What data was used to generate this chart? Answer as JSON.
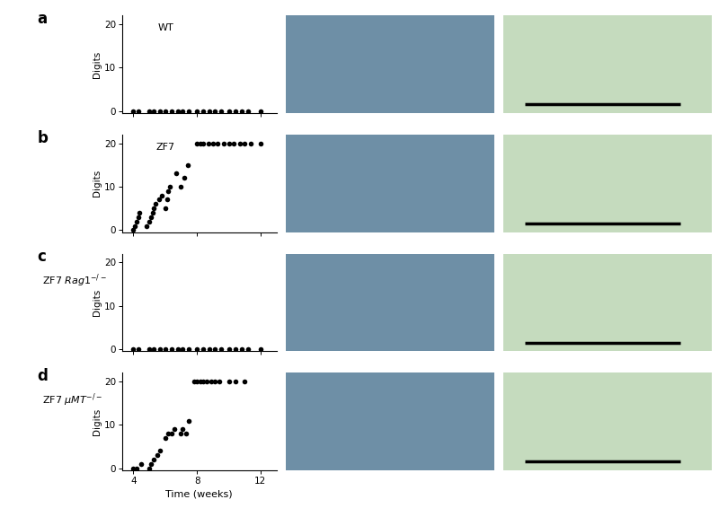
{
  "panels": [
    {
      "label": "a",
      "scatter_x": [
        4.0,
        4.3,
        5.0,
        5.3,
        5.7,
        6.0,
        6.4,
        6.8,
        7.1,
        7.5,
        8.0,
        8.4,
        8.8,
        9.1,
        9.5,
        10.0,
        10.4,
        10.8,
        11.2,
        12.0
      ],
      "scatter_y": [
        0,
        0,
        0,
        0,
        0,
        0,
        0,
        0,
        0,
        0,
        0,
        0,
        0,
        0,
        0,
        0,
        0,
        0,
        0,
        0
      ]
    },
    {
      "label": "b",
      "scatter_x": [
        4.0,
        4.1,
        4.2,
        4.3,
        4.4,
        4.8,
        5.0,
        5.1,
        5.2,
        5.3,
        5.4,
        5.6,
        5.8,
        6.0,
        6.1,
        6.2,
        6.3,
        6.7,
        7.0,
        7.2,
        7.4,
        8.0,
        8.2,
        8.4,
        8.7,
        9.0,
        9.3,
        9.7,
        10.0,
        10.3,
        10.7,
        11.0,
        11.4,
        12.0
      ],
      "scatter_y": [
        0,
        1,
        2,
        3,
        4,
        1,
        2,
        3,
        4,
        5,
        6,
        7,
        8,
        5,
        7,
        9,
        10,
        13,
        10,
        12,
        15,
        20,
        20,
        20,
        20,
        20,
        20,
        20,
        20,
        20,
        20,
        20,
        20,
        20
      ]
    },
    {
      "label": "c",
      "scatter_x": [
        4.0,
        4.3,
        5.0,
        5.3,
        5.7,
        6.0,
        6.4,
        6.8,
        7.1,
        7.5,
        8.0,
        8.4,
        8.8,
        9.1,
        9.5,
        10.0,
        10.4,
        10.8,
        11.2,
        12.0
      ],
      "scatter_y": [
        0,
        0,
        0,
        0,
        0,
        0,
        0,
        0,
        0,
        0,
        0,
        0,
        0,
        0,
        0,
        0,
        0,
        0,
        0,
        0
      ]
    },
    {
      "label": "d",
      "scatter_x": [
        4.0,
        4.2,
        4.5,
        5.0,
        5.1,
        5.3,
        5.5,
        5.7,
        6.0,
        6.2,
        6.4,
        6.6,
        7.0,
        7.1,
        7.3,
        7.5,
        7.8,
        8.0,
        8.2,
        8.4,
        8.6,
        8.9,
        9.1,
        9.4,
        10.0,
        10.4,
        11.0
      ],
      "scatter_y": [
        0,
        0,
        1,
        0,
        1,
        2,
        3,
        4,
        7,
        8,
        8,
        9,
        8,
        9,
        8,
        11,
        20,
        20,
        20,
        20,
        20,
        20,
        20,
        20,
        20,
        20,
        20
      ]
    }
  ],
  "xlabel": "Time (weeks)",
  "ylabel": "Digits",
  "xlim": [
    3.3,
    13.0
  ],
  "ylim": [
    -0.5,
    22
  ],
  "xticks": [
    4,
    8,
    12
  ],
  "yticks": [
    0,
    10,
    20
  ],
  "dot_color": "#000000",
  "dot_size": 16,
  "bg_color": "#ffffff",
  "font_size": 7.5,
  "label_font_size": 12,
  "photo_color": "#6e8fa6",
  "histo_color": "#c5dbbe"
}
